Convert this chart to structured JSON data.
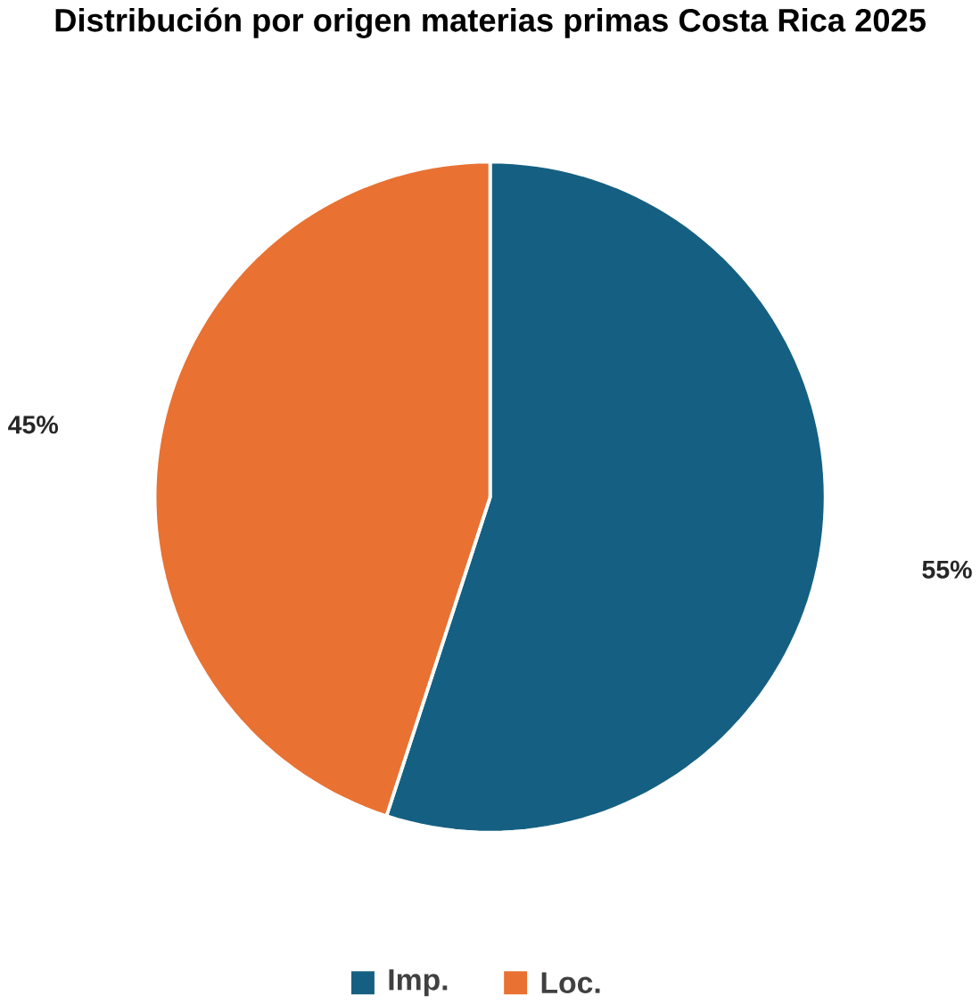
{
  "chart_data": {
    "type": "pie",
    "title": "Distribución por origen materias primas Costa Rica 2025",
    "categories": [
      "Imp.",
      "Loc."
    ],
    "values": [
      55,
      45
    ],
    "colors": [
      "#156082",
      "#e97132"
    ],
    "value_labels": [
      "55%",
      "45%"
    ],
    "legend": "bottom"
  }
}
